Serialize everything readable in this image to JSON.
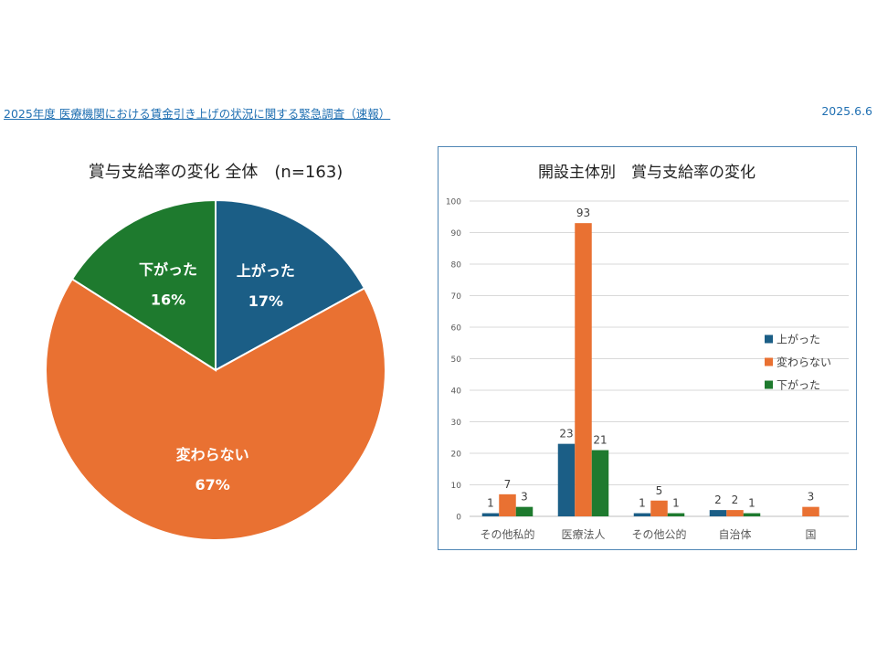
{
  "header": {
    "report_title": "2025年度 医療機関における賃金引き上げの状況に関する緊急調査（速報）",
    "date": "2025.6.6"
  },
  "colors": {
    "up": "#1b5e86",
    "same": "#e97132",
    "down": "#1e7a2e"
  },
  "chart_data": [
    {
      "type": "pie",
      "title": "賞与支給率の変化 全体　(n=163)",
      "slices": [
        {
          "label": "上がった",
          "value": 17,
          "display": "17%"
        },
        {
          "label": "変わらない",
          "value": 67,
          "display": "67%"
        },
        {
          "label": "下がった",
          "value": 16,
          "display": "16%"
        }
      ]
    },
    {
      "type": "bar",
      "title": "開設主体別　賞与支給率の変化",
      "categories": [
        "その他私的",
        "医療法人",
        "その他公的",
        "自治体",
        "国"
      ],
      "series": [
        {
          "name": "上がった",
          "values": [
            1,
            23,
            1,
            2,
            0
          ],
          "labels": [
            "1",
            "23",
            "1",
            "2",
            ""
          ]
        },
        {
          "name": "変わらない",
          "values": [
            7,
            93,
            5,
            2,
            3
          ],
          "labels": [
            "7",
            "93",
            "5",
            "2",
            "3"
          ]
        },
        {
          "name": "下がった",
          "values": [
            3,
            21,
            1,
            1,
            0
          ],
          "labels": [
            "3",
            "21",
            "1",
            "1",
            ""
          ]
        }
      ],
      "ylim": [
        0,
        100
      ],
      "yticks": [
        0,
        10,
        20,
        30,
        40,
        50,
        60,
        70,
        80,
        90,
        100
      ],
      "legend_position": "right",
      "grid": true
    }
  ]
}
